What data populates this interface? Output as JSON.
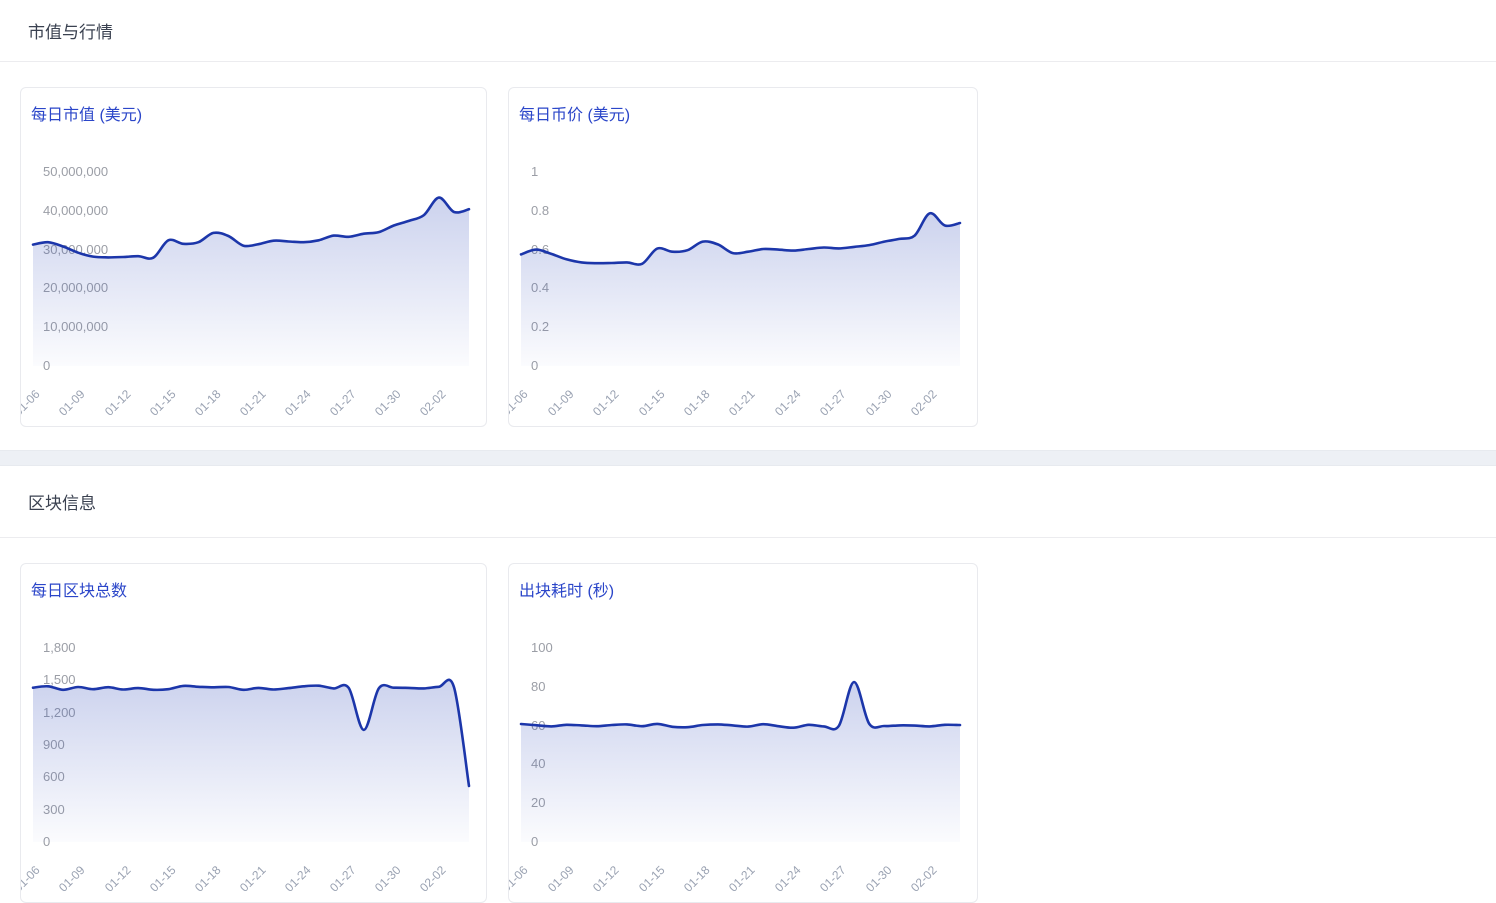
{
  "sections": [
    {
      "title": "市值与行情"
    },
    {
      "title": "区块信息"
    }
  ],
  "colors": {
    "line": "#1c36aa",
    "area": "#3b54bd",
    "area_top_opacity": 0.26,
    "area_bottom_opacity": 0.02,
    "card_title": "#2b46c9",
    "section_title": "#3a4150",
    "y_label": "#9b9ea6",
    "x_label": "#9aa2b2",
    "card_border": "#e9eaee",
    "divider_bg": "#edf0f5",
    "header_border": "#ececef"
  },
  "chart_data": [
    {
      "type": "area",
      "title": "每日市值 (美元)",
      "x": [
        "01-06",
        "01-07",
        "01-08",
        "01-09",
        "01-10",
        "01-11",
        "01-12",
        "01-13",
        "01-14",
        "01-15",
        "01-16",
        "01-17",
        "01-18",
        "01-19",
        "01-20",
        "01-21",
        "01-22",
        "01-23",
        "01-24",
        "01-25",
        "01-26",
        "01-27",
        "01-28",
        "01-29",
        "01-30",
        "01-31",
        "02-01",
        "02-02",
        "02-03",
        "02-04"
      ],
      "xtick_indexes": [
        0,
        3,
        6,
        9,
        12,
        15,
        18,
        21,
        24,
        27
      ],
      "values": [
        31300000,
        31900000,
        30800000,
        29200000,
        28200000,
        28000000,
        28100000,
        28300000,
        27900000,
        32400000,
        31500000,
        31900000,
        34300000,
        33500000,
        31000000,
        31400000,
        32300000,
        32100000,
        31900000,
        32400000,
        33600000,
        33300000,
        34100000,
        34500000,
        36200000,
        37400000,
        38900000,
        43400000,
        39700000,
        40400000
      ],
      "ylim": [
        0,
        50000000
      ],
      "ytick_labels_top_down": [
        "50,000,000",
        "40,000,000",
        "30,000,000",
        "20,000,000",
        "10,000,000",
        "0"
      ],
      "grid": false,
      "legend_position": "none"
    },
    {
      "type": "area",
      "title": "每日币价 (美元)",
      "x": [
        "01-06",
        "01-07",
        "01-08",
        "01-09",
        "01-10",
        "01-11",
        "01-12",
        "01-13",
        "01-14",
        "01-15",
        "01-16",
        "01-17",
        "01-18",
        "01-19",
        "01-20",
        "01-21",
        "01-22",
        "01-23",
        "01-24",
        "01-25",
        "01-26",
        "01-27",
        "01-28",
        "01-29",
        "01-30",
        "01-31",
        "02-01",
        "02-02",
        "02-03",
        "02-04"
      ],
      "xtick_indexes": [
        0,
        3,
        6,
        9,
        12,
        15,
        18,
        21,
        24,
        27
      ],
      "values": [
        0.575,
        0.6,
        0.578,
        0.55,
        0.534,
        0.53,
        0.531,
        0.534,
        0.527,
        0.605,
        0.589,
        0.597,
        0.641,
        0.627,
        0.582,
        0.589,
        0.603,
        0.6,
        0.595,
        0.603,
        0.611,
        0.606,
        0.614,
        0.623,
        0.641,
        0.655,
        0.672,
        0.787,
        0.724,
        0.737
      ],
      "ylim": [
        0,
        1
      ],
      "ytick_labels_top_down": [
        "1",
        "0.8",
        "0.6",
        "0.4",
        "0.2",
        "0"
      ],
      "grid": false,
      "legend_position": "none"
    },
    {
      "type": "area",
      "title": "每日区块总数",
      "x": [
        "01-06",
        "01-07",
        "01-08",
        "01-09",
        "01-10",
        "01-11",
        "01-12",
        "01-13",
        "01-14",
        "01-15",
        "01-16",
        "01-17",
        "01-18",
        "01-19",
        "01-20",
        "01-21",
        "01-22",
        "01-23",
        "01-24",
        "01-25",
        "01-26",
        "01-27",
        "01-28",
        "01-29",
        "01-30",
        "01-31",
        "02-01",
        "02-02",
        "02-03",
        "02-04"
      ],
      "xtick_indexes": [
        0,
        3,
        6,
        9,
        12,
        15,
        18,
        21,
        24,
        27
      ],
      "values": [
        1432,
        1445,
        1412,
        1438,
        1418,
        1436,
        1415,
        1428,
        1412,
        1418,
        1448,
        1440,
        1435,
        1438,
        1412,
        1430,
        1415,
        1428,
        1445,
        1450,
        1425,
        1430,
        1040,
        1425,
        1432,
        1430,
        1425,
        1440,
        1435,
        520
      ],
      "ylim": [
        0,
        1800
      ],
      "ytick_labels_top_down": [
        "1,800",
        "1,500",
        "1,200",
        "900",
        "600",
        "300",
        "0"
      ],
      "grid": false,
      "legend_position": "none"
    },
    {
      "type": "area",
      "title": "出块耗时 (秒)",
      "x": [
        "01-06",
        "01-07",
        "01-08",
        "01-09",
        "01-10",
        "01-11",
        "01-12",
        "01-13",
        "01-14",
        "01-15",
        "01-16",
        "01-17",
        "01-18",
        "01-19",
        "01-20",
        "01-21",
        "01-22",
        "01-23",
        "01-24",
        "01-25",
        "01-26",
        "01-27",
        "01-28",
        "01-29",
        "01-30",
        "01-31",
        "02-01",
        "02-02",
        "02-03",
        "02-04"
      ],
      "xtick_indexes": [
        0,
        3,
        6,
        9,
        12,
        15,
        18,
        21,
        24,
        27
      ],
      "values": [
        60.8,
        60.2,
        59.6,
        60.4,
        60.1,
        59.7,
        60.3,
        60.6,
        59.7,
        60.9,
        59.4,
        59.2,
        60.3,
        60.6,
        60.1,
        59.5,
        60.7,
        59.7,
        58.9,
        60.4,
        59.6,
        59.9,
        82.5,
        61.0,
        59.8,
        60.1,
        60.0,
        59.6,
        60.4,
        60.3
      ],
      "ylim": [
        0,
        100
      ],
      "ytick_labels_top_down": [
        "100",
        "80",
        "60",
        "40",
        "20",
        "0"
      ],
      "grid": false,
      "legend_position": "none"
    }
  ]
}
